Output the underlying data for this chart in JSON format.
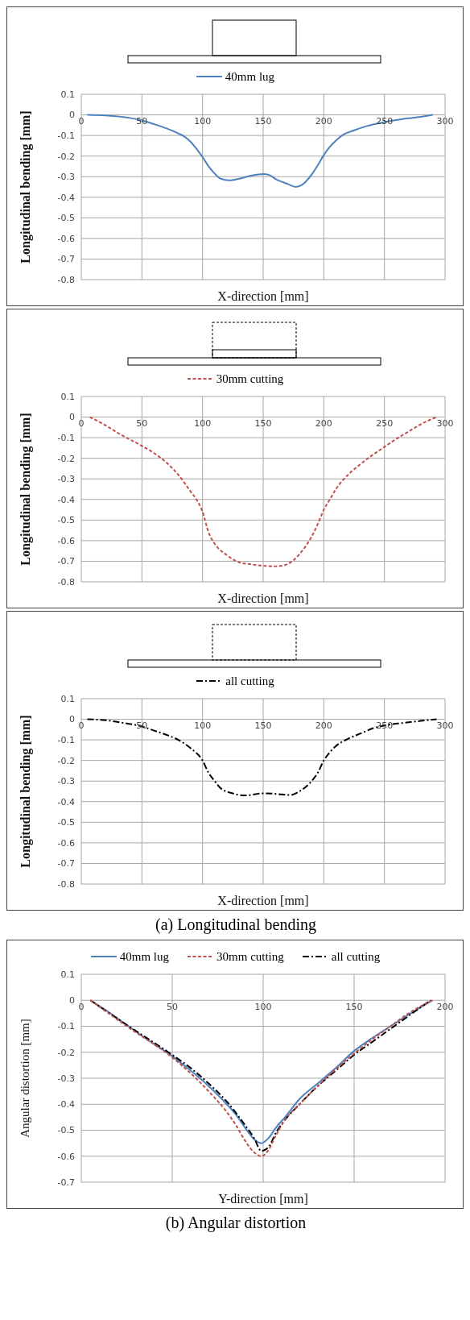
{
  "chart_data": [
    {
      "type": "line",
      "xlabel": "X-direction [mm]",
      "ylabel": "Longitudinal bending [mm]",
      "xlim": [
        0,
        300
      ],
      "xticks": [
        0,
        50,
        100,
        150,
        200,
        250,
        300
      ],
      "ylim": [
        -0.8,
        0.1
      ],
      "yticks": [
        0.1,
        0,
        -0.1,
        -0.2,
        -0.3,
        -0.4,
        -0.5,
        -0.6,
        -0.7,
        -0.8
      ],
      "grid": true,
      "legend": "top",
      "series": [
        {
          "name": "40mm lug",
          "color": "#4f81bd",
          "line_style": "solid",
          "x": [
            5,
            20,
            40,
            50,
            60,
            70,
            80,
            85,
            90,
            95,
            100,
            105,
            110,
            115,
            122,
            130,
            140,
            150,
            155,
            160,
            170,
            177,
            182,
            190,
            195,
            200,
            205,
            210,
            215,
            225,
            235,
            250,
            265,
            280,
            290
          ],
          "values": [
            0,
            -0.003,
            -0.015,
            -0.027,
            -0.045,
            -0.065,
            -0.09,
            -0.105,
            -0.13,
            -0.165,
            -0.205,
            -0.25,
            -0.285,
            -0.31,
            -0.318,
            -0.31,
            -0.295,
            -0.287,
            -0.292,
            -0.31,
            -0.335,
            -0.35,
            -0.34,
            -0.29,
            -0.245,
            -0.195,
            -0.155,
            -0.125,
            -0.1,
            -0.075,
            -0.055,
            -0.035,
            -0.02,
            -0.01,
            0
          ]
        }
      ]
    },
    {
      "type": "line",
      "xlabel": "X-direction [mm]",
      "ylabel": "Longitudinal bending [mm]",
      "xlim": [
        0,
        300
      ],
      "xticks": [
        0,
        50,
        100,
        150,
        200,
        250,
        300
      ],
      "ylim": [
        -0.8,
        0.1
      ],
      "yticks": [
        0.1,
        0,
        -0.1,
        -0.2,
        -0.3,
        -0.4,
        -0.5,
        -0.6,
        -0.7,
        -0.8
      ],
      "grid": true,
      "legend": "top",
      "series": [
        {
          "name": "30mm cutting",
          "color": "#c0504d",
          "line_style": "dashed",
          "x": [
            7,
            20,
            31,
            50,
            60,
            70,
            80,
            90,
            95,
            100,
            105,
            110,
            120,
            130,
            140,
            150,
            160,
            167,
            175,
            180,
            190,
            195,
            200,
            205,
            210,
            220,
            230,
            240,
            250,
            260,
            270,
            280,
            293
          ],
          "values": [
            0,
            -0.04,
            -0.08,
            -0.14,
            -0.175,
            -0.22,
            -0.28,
            -0.36,
            -0.4,
            -0.46,
            -0.56,
            -0.615,
            -0.67,
            -0.705,
            -0.715,
            -0.722,
            -0.725,
            -0.72,
            -0.695,
            -0.665,
            -0.58,
            -0.52,
            -0.45,
            -0.4,
            -0.35,
            -0.28,
            -0.23,
            -0.185,
            -0.145,
            -0.105,
            -0.07,
            -0.035,
            0
          ]
        }
      ]
    },
    {
      "type": "line",
      "xlabel": "X-direction [mm]",
      "ylabel": "Longitudinal bending [mm]",
      "xlim": [
        0,
        300
      ],
      "xticks": [
        0,
        50,
        100,
        150,
        200,
        250,
        300
      ],
      "ylim": [
        -0.8,
        0.1
      ],
      "yticks": [
        0.1,
        0,
        -0.1,
        -0.2,
        -0.3,
        -0.4,
        -0.5,
        -0.6,
        -0.7,
        -0.8
      ],
      "grid": true,
      "legend": "top",
      "annotations": [
        "(a) Longitudinal bending"
      ],
      "series": [
        {
          "name": "all cutting",
          "color": "#000000",
          "line_style": "dashdot",
          "x": [
            5,
            20,
            35,
            50,
            60,
            70,
            80,
            90,
            100,
            105,
            110,
            115,
            125,
            135,
            150,
            160,
            172,
            180,
            190,
            195,
            200,
            205,
            210,
            220,
            230,
            240,
            250,
            265,
            280,
            293
          ],
          "values": [
            0,
            -0.005,
            -0.018,
            -0.035,
            -0.055,
            -0.075,
            -0.1,
            -0.14,
            -0.2,
            -0.26,
            -0.3,
            -0.335,
            -0.36,
            -0.37,
            -0.36,
            -0.362,
            -0.368,
            -0.35,
            -0.3,
            -0.26,
            -0.2,
            -0.16,
            -0.13,
            -0.095,
            -0.07,
            -0.045,
            -0.03,
            -0.018,
            -0.008,
            0
          ]
        }
      ]
    },
    {
      "type": "line",
      "xlabel": "Y-direction [mm]",
      "ylabel": "Angular distortion [mm]",
      "xlim": [
        0,
        200
      ],
      "xticks": [
        0,
        50,
        100,
        150,
        200
      ],
      "ylim": [
        -0.7,
        0.1
      ],
      "yticks": [
        0.1,
        0,
        -0.1,
        -0.2,
        -0.3,
        -0.4,
        -0.5,
        -0.6,
        -0.7
      ],
      "grid": true,
      "legend": "top",
      "annotations": [
        "(b) Angular distortion"
      ],
      "series": [
        {
          "name": "40mm lug",
          "color": "#4f81bd",
          "line_style": "solid",
          "x": [
            5,
            15,
            25,
            35,
            50,
            60,
            70,
            80,
            85,
            90,
            95,
            99,
            103,
            107,
            112,
            120,
            130,
            140,
            150,
            160,
            170,
            180,
            193
          ],
          "values": [
            0,
            -0.045,
            -0.095,
            -0.145,
            -0.215,
            -0.27,
            -0.33,
            -0.4,
            -0.44,
            -0.49,
            -0.535,
            -0.55,
            -0.53,
            -0.49,
            -0.45,
            -0.38,
            -0.32,
            -0.26,
            -0.195,
            -0.145,
            -0.1,
            -0.055,
            0
          ]
        },
        {
          "name": "30mm cutting",
          "color": "#c0504d",
          "line_style": "dashed",
          "x": [
            5,
            25,
            50,
            60,
            70,
            80,
            85,
            90,
            95,
            99,
            103,
            107,
            112,
            120,
            130,
            140,
            150,
            160,
            170,
            180,
            193
          ],
          "values": [
            0,
            -0.1,
            -0.22,
            -0.28,
            -0.35,
            -0.43,
            -0.48,
            -0.54,
            -0.585,
            -0.6,
            -0.575,
            -0.52,
            -0.46,
            -0.4,
            -0.33,
            -0.265,
            -0.205,
            -0.15,
            -0.1,
            -0.05,
            0
          ]
        },
        {
          "name": "all cutting",
          "color": "#000000",
          "line_style": "dashdot",
          "x": [
            5,
            25,
            50,
            60,
            70,
            80,
            90,
            95,
            99,
            103,
            107,
            112,
            120,
            130,
            140,
            150,
            160,
            170,
            180,
            192
          ],
          "values": [
            0,
            -0.095,
            -0.21,
            -0.26,
            -0.32,
            -0.39,
            -0.48,
            -0.53,
            -0.58,
            -0.565,
            -0.51,
            -0.46,
            -0.4,
            -0.33,
            -0.27,
            -0.21,
            -0.16,
            -0.11,
            -0.06,
            0
          ]
        }
      ]
    }
  ]
}
